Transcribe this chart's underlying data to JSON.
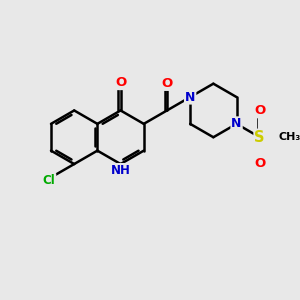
{
  "bg_color": "#e8e8e8",
  "bond_color": "#000000",
  "bond_width": 1.8,
  "atom_colors": {
    "O": "#ff0000",
    "N": "#0000cc",
    "Cl": "#00aa00",
    "S": "#cccc00",
    "C": "#000000",
    "H": "#000000"
  },
  "font_size": 8.5,
  "fig_bg": "#e8e8e8"
}
